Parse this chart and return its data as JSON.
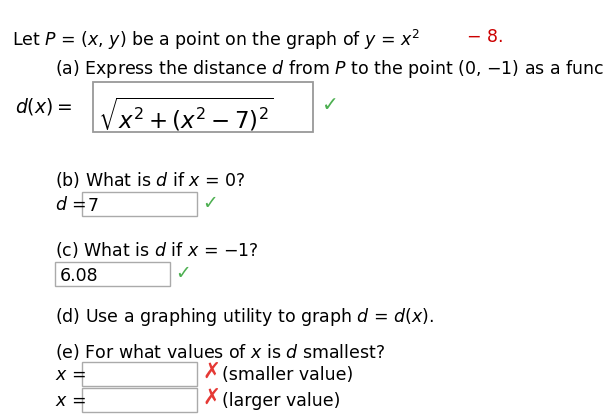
{
  "bg_color": "#ffffff",
  "text_color": "#000000",
  "red_color": "#cc0000",
  "green_color": "#4caf50",
  "red_x_color": "#e53935",
  "font_size": 12.5
}
